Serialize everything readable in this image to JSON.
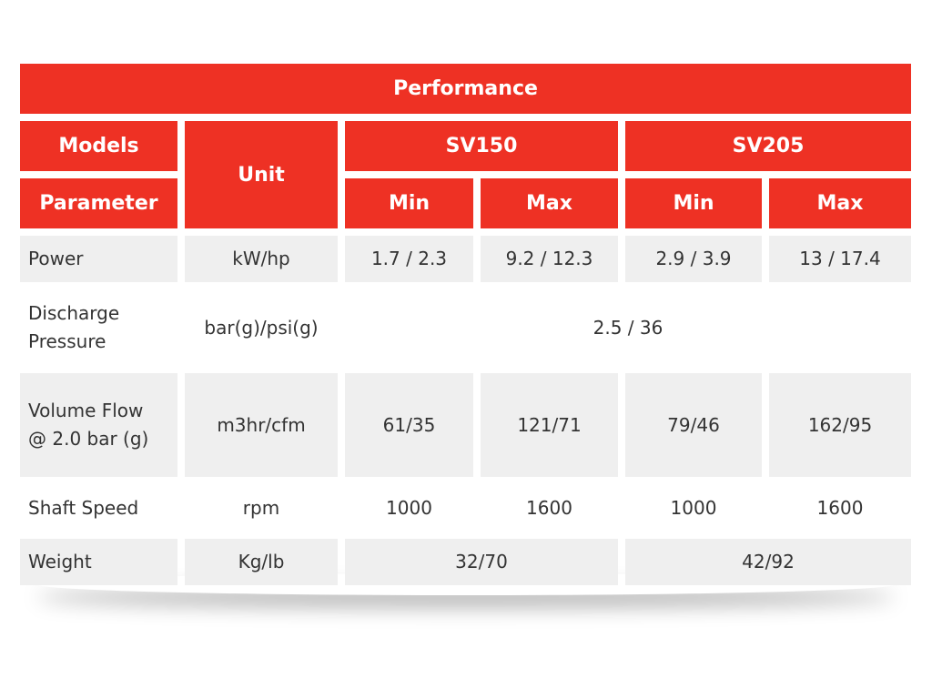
{
  "table": {
    "title": "Performance",
    "header": {
      "models": "Models",
      "parameter": "Parameter",
      "unit": "Unit",
      "groups": [
        "SV150",
        "SV205"
      ],
      "sub": [
        "Min",
        "Max",
        "Min",
        "Max"
      ]
    },
    "rows": [
      [
        "Power",
        "kW/hp",
        "1.7 / 2.3",
        "9.2 / 12.3",
        "2.9 / 3.9",
        "13 / 17.4"
      ],
      [
        "Discharge Pressure",
        "bar(g)/psi(g)",
        "2.5 / 36"
      ],
      [
        "Volume Flow @ 2.0 bar (g)",
        "m3hr/cfm",
        "61/35",
        "121/71",
        "79/46",
        "162/95"
      ],
      [
        "Shaft Speed",
        "rpm",
        "1000",
        "1600",
        "1000",
        "1600"
      ],
      [
        "Weight",
        "Kg/lb",
        "32/70",
        "42/92"
      ]
    ]
  }
}
